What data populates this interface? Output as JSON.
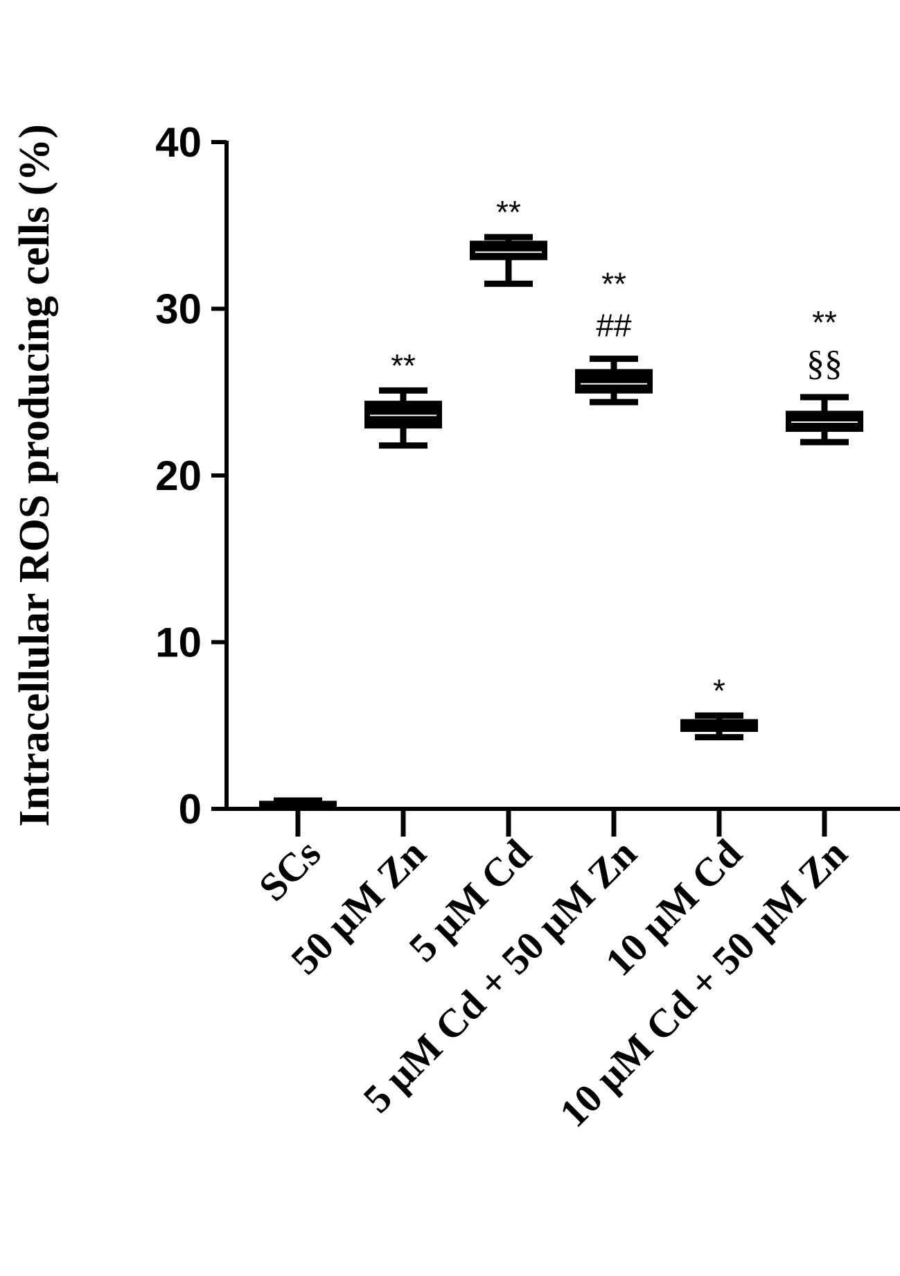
{
  "chart_data": {
    "type": "boxplot",
    "ylabel": "Intracellular ROS producing cells (%)",
    "xlabel": "",
    "ylim": [
      0,
      40
    ],
    "yticks": [
      0,
      10,
      20,
      30,
      40
    ],
    "grid": false,
    "categories": [
      "SCs",
      "50 µM Zn",
      "5 µM Cd",
      "5 µM Cd +  50 µM Zn",
      "10 µM Cd",
      "10 µM Cd + 50 µM Zn"
    ],
    "boxes": [
      {
        "min": 0.1,
        "q1": 0.2,
        "median": 0.3,
        "q3": 0.4,
        "max": 0.5
      },
      {
        "min": 21.8,
        "q1": 22.9,
        "median": 23.6,
        "q3": 24.4,
        "max": 25.1
      },
      {
        "min": 31.5,
        "q1": 33.0,
        "median": 33.4,
        "q3": 34.0,
        "max": 34.3
      },
      {
        "min": 24.4,
        "q1": 25.0,
        "median": 25.5,
        "q3": 26.3,
        "max": 27.0
      },
      {
        "min": 4.3,
        "q1": 4.7,
        "median": 5.0,
        "q3": 5.3,
        "max": 5.6
      },
      {
        "min": 22.0,
        "q1": 22.7,
        "median": 23.2,
        "q3": 23.8,
        "max": 24.7
      }
    ],
    "annotations": [
      {
        "category": "50 µM Zn",
        "labels": [
          "**"
        ]
      },
      {
        "category": "5 µM Cd",
        "labels": [
          "**"
        ]
      },
      {
        "category": "5 µM Cd +  50 µM Zn",
        "labels": [
          "**",
          "##"
        ]
      },
      {
        "category": "10 µM Cd",
        "labels": [
          "*"
        ]
      },
      {
        "category": "10 µM Cd + 50 µM Zn",
        "labels": [
          "**",
          "§§"
        ]
      }
    ]
  }
}
